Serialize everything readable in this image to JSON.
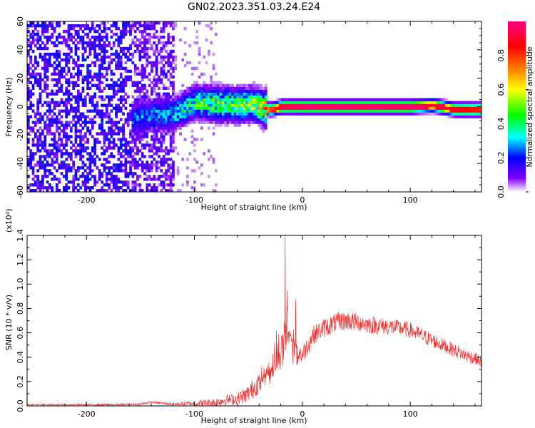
{
  "title": "GN02.2023.351.03.24.E24",
  "chart_data": [
    {
      "type": "heatmap",
      "title": "GN02.2023.351.03.24.E24",
      "xlabel": "Height of straight line (km)",
      "ylabel": "Frequency (Hz)",
      "xlim": [
        -255,
        166
      ],
      "ylim": [
        -60,
        60
      ],
      "xticks": [
        -200,
        -100,
        0,
        100
      ],
      "xtick_labels": [
        "-200",
        "-100",
        "0",
        "100"
      ],
      "yticks": [
        -60,
        -40,
        -20,
        0,
        20,
        40,
        60
      ],
      "ytick_labels": [
        "-60",
        "-40",
        "-20",
        "0",
        "20",
        "40",
        "60"
      ],
      "colorbar": {
        "label": "Normalized spectral amplitude",
        "range": [
          0,
          1
        ],
        "ticks": [
          0,
          0.2,
          0.4,
          0.6,
          0.8
        ],
        "tick_labels": [
          "0.0",
          "0.2",
          "0.4",
          "0.6",
          "0.8"
        ],
        "colors": [
          "#ffffff",
          "#8000ff",
          "#0000ff",
          "#00ffff",
          "#00ff00",
          "#ffff00",
          "#ff8000",
          "#ff0000",
          "#ff0080"
        ]
      },
      "grid": false,
      "ridge": {
        "x": [
          -160,
          -140,
          -120,
          -100,
          -80,
          -60,
          -45,
          -38,
          -30,
          -20,
          0,
          20,
          40,
          60,
          80,
          100,
          120,
          140,
          166
        ],
        "y": [
          -9,
          -6,
          -5,
          3,
          2,
          1,
          2,
          -1,
          -2,
          0,
          0,
          0,
          0,
          0,
          0,
          0,
          1,
          -2,
          -2
        ],
        "amplitude": [
          0.25,
          0.25,
          0.3,
          0.4,
          0.45,
          0.45,
          0.5,
          0.6,
          0.8,
          0.95,
          1.0,
          1.0,
          1.0,
          1.0,
          1.0,
          1.0,
          0.95,
          0.9,
          0.85
        ]
      }
    },
    {
      "type": "line",
      "xlabel": "Height of straight line (km)",
      "ylabel": "SNR (10 * v/v)",
      "y_multiplier": "(x10⁴)",
      "xlim": [
        -255,
        166
      ],
      "ylim": [
        0,
        1.4
      ],
      "xticks": [
        -200,
        -100,
        0,
        100
      ],
      "xtick_labels": [
        "-200",
        "-100",
        "0",
        "100"
      ],
      "yticks": [
        0,
        0.2,
        0.4,
        0.6,
        0.8,
        1.0,
        1.2,
        1.4
      ],
      "ytick_labels": [
        "0.0",
        "0.2",
        "0.4",
        "0.6",
        "0.8",
        "1.0",
        "1.2",
        "1.4"
      ],
      "grid": false,
      "color": "#f03030",
      "series": [
        {
          "x": [
            -255,
            -230,
            -200,
            -170,
            -150,
            -140,
            -120,
            -100,
            -80,
            -70,
            -60,
            -50,
            -45,
            -40,
            -35,
            -30,
            -25,
            -22,
            -18,
            -16,
            -15,
            -13,
            -10,
            -5,
            0,
            5,
            10,
            20,
            30,
            40,
            50,
            60,
            70,
            80,
            90,
            100,
            110,
            120,
            130,
            140,
            150,
            160,
            166
          ],
          "y": [
            0.01,
            0.01,
            0.01,
            0.01,
            0.015,
            0.03,
            0.015,
            0.02,
            0.03,
            0.05,
            0.06,
            0.1,
            0.15,
            0.2,
            0.25,
            0.3,
            0.35,
            0.4,
            0.5,
            0.6,
            0.7,
            0.62,
            0.55,
            0.45,
            0.42,
            0.5,
            0.58,
            0.64,
            0.68,
            0.7,
            0.69,
            0.67,
            0.66,
            0.65,
            0.64,
            0.62,
            0.58,
            0.54,
            0.5,
            0.46,
            0.42,
            0.39,
            0.36
          ]
        }
      ],
      "spikes": [
        {
          "x": -16,
          "y": 1.4
        },
        {
          "x": -14,
          "y": 0.95
        },
        {
          "x": -6,
          "y": 0.87
        },
        {
          "x": -24,
          "y": 0.62
        }
      ],
      "noise_amplitude": [
        {
          "x": -255,
          "a": 0.005
        },
        {
          "x": -120,
          "a": 0.01
        },
        {
          "x": -60,
          "a": 0.05
        },
        {
          "x": -30,
          "a": 0.12
        },
        {
          "x": -15,
          "a": 0.25
        },
        {
          "x": 0,
          "a": 0.08
        },
        {
          "x": 40,
          "a": 0.08
        },
        {
          "x": 166,
          "a": 0.05
        }
      ]
    }
  ]
}
